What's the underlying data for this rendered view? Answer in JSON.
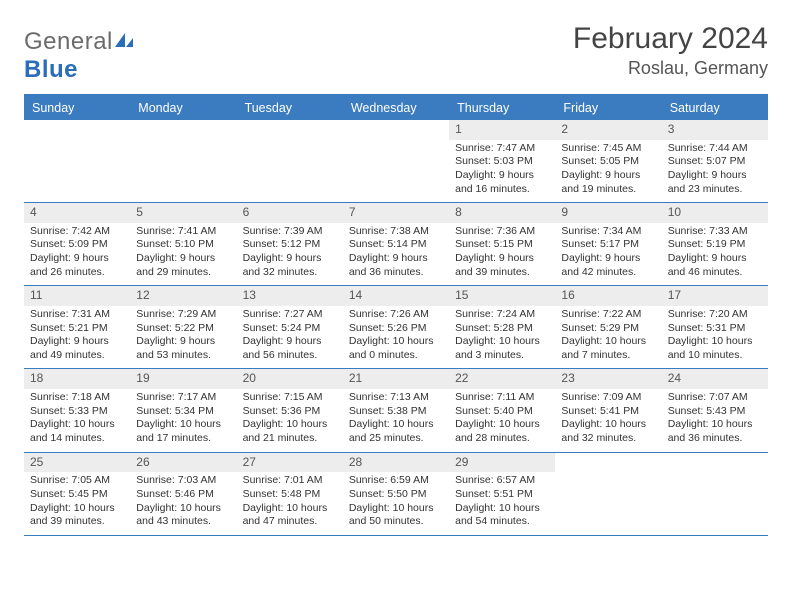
{
  "brand": {
    "name_part1": "General",
    "name_part2": "Blue",
    "text_color": "#6b6b6b",
    "accent_color": "#2a6db8"
  },
  "title": {
    "month": "February 2024",
    "location": "Roslau, Germany",
    "title_fontsize": 30,
    "location_fontsize": 18
  },
  "colors": {
    "header_bar": "#3b7bbf",
    "daynum_bg": "#ededed",
    "page_bg": "#ffffff",
    "text": "#333333"
  },
  "day_names": [
    "Sunday",
    "Monday",
    "Tuesday",
    "Wednesday",
    "Thursday",
    "Friday",
    "Saturday"
  ],
  "weeks": [
    [
      {
        "empty": true
      },
      {
        "empty": true
      },
      {
        "empty": true
      },
      {
        "empty": true
      },
      {
        "n": "1",
        "sunrise": "7:47 AM",
        "sunset": "5:03 PM",
        "day_h": 9,
        "day_m": 16
      },
      {
        "n": "2",
        "sunrise": "7:45 AM",
        "sunset": "5:05 PM",
        "day_h": 9,
        "day_m": 19
      },
      {
        "n": "3",
        "sunrise": "7:44 AM",
        "sunset": "5:07 PM",
        "day_h": 9,
        "day_m": 23
      }
    ],
    [
      {
        "n": "4",
        "sunrise": "7:42 AM",
        "sunset": "5:09 PM",
        "day_h": 9,
        "day_m": 26
      },
      {
        "n": "5",
        "sunrise": "7:41 AM",
        "sunset": "5:10 PM",
        "day_h": 9,
        "day_m": 29
      },
      {
        "n": "6",
        "sunrise": "7:39 AM",
        "sunset": "5:12 PM",
        "day_h": 9,
        "day_m": 32
      },
      {
        "n": "7",
        "sunrise": "7:38 AM",
        "sunset": "5:14 PM",
        "day_h": 9,
        "day_m": 36
      },
      {
        "n": "8",
        "sunrise": "7:36 AM",
        "sunset": "5:15 PM",
        "day_h": 9,
        "day_m": 39
      },
      {
        "n": "9",
        "sunrise": "7:34 AM",
        "sunset": "5:17 PM",
        "day_h": 9,
        "day_m": 42
      },
      {
        "n": "10",
        "sunrise": "7:33 AM",
        "sunset": "5:19 PM",
        "day_h": 9,
        "day_m": 46
      }
    ],
    [
      {
        "n": "11",
        "sunrise": "7:31 AM",
        "sunset": "5:21 PM",
        "day_h": 9,
        "day_m": 49
      },
      {
        "n": "12",
        "sunrise": "7:29 AM",
        "sunset": "5:22 PM",
        "day_h": 9,
        "day_m": 53
      },
      {
        "n": "13",
        "sunrise": "7:27 AM",
        "sunset": "5:24 PM",
        "day_h": 9,
        "day_m": 56
      },
      {
        "n": "14",
        "sunrise": "7:26 AM",
        "sunset": "5:26 PM",
        "day_h": 10,
        "day_m": 0
      },
      {
        "n": "15",
        "sunrise": "7:24 AM",
        "sunset": "5:28 PM",
        "day_h": 10,
        "day_m": 3
      },
      {
        "n": "16",
        "sunrise": "7:22 AM",
        "sunset": "5:29 PM",
        "day_h": 10,
        "day_m": 7
      },
      {
        "n": "17",
        "sunrise": "7:20 AM",
        "sunset": "5:31 PM",
        "day_h": 10,
        "day_m": 10
      }
    ],
    [
      {
        "n": "18",
        "sunrise": "7:18 AM",
        "sunset": "5:33 PM",
        "day_h": 10,
        "day_m": 14
      },
      {
        "n": "19",
        "sunrise": "7:17 AM",
        "sunset": "5:34 PM",
        "day_h": 10,
        "day_m": 17
      },
      {
        "n": "20",
        "sunrise": "7:15 AM",
        "sunset": "5:36 PM",
        "day_h": 10,
        "day_m": 21
      },
      {
        "n": "21",
        "sunrise": "7:13 AM",
        "sunset": "5:38 PM",
        "day_h": 10,
        "day_m": 25
      },
      {
        "n": "22",
        "sunrise": "7:11 AM",
        "sunset": "5:40 PM",
        "day_h": 10,
        "day_m": 28
      },
      {
        "n": "23",
        "sunrise": "7:09 AM",
        "sunset": "5:41 PM",
        "day_h": 10,
        "day_m": 32
      },
      {
        "n": "24",
        "sunrise": "7:07 AM",
        "sunset": "5:43 PM",
        "day_h": 10,
        "day_m": 36
      }
    ],
    [
      {
        "n": "25",
        "sunrise": "7:05 AM",
        "sunset": "5:45 PM",
        "day_h": 10,
        "day_m": 39
      },
      {
        "n": "26",
        "sunrise": "7:03 AM",
        "sunset": "5:46 PM",
        "day_h": 10,
        "day_m": 43
      },
      {
        "n": "27",
        "sunrise": "7:01 AM",
        "sunset": "5:48 PM",
        "day_h": 10,
        "day_m": 47
      },
      {
        "n": "28",
        "sunrise": "6:59 AM",
        "sunset": "5:50 PM",
        "day_h": 10,
        "day_m": 50
      },
      {
        "n": "29",
        "sunrise": "6:57 AM",
        "sunset": "5:51 PM",
        "day_h": 10,
        "day_m": 54
      },
      {
        "empty": true
      },
      {
        "empty": true
      }
    ]
  ],
  "labels": {
    "sunrise": "Sunrise:",
    "sunset": "Sunset:",
    "daylight": "Daylight:"
  }
}
